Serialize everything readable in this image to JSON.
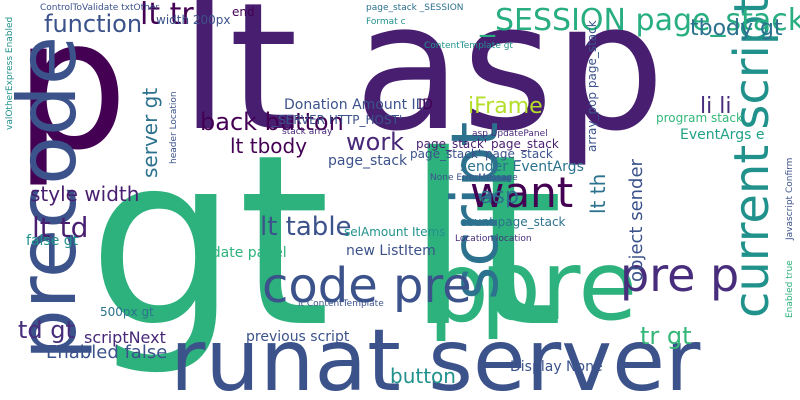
{
  "words": [
    {
      "text": "gt lt",
      "color": "#2db27d"
    },
    {
      "text": "lt asp",
      "color": "#481f70"
    },
    {
      "text": "p",
      "color": "#440154"
    },
    {
      "text": "runat server",
      "color": "#3b528b"
    },
    {
      "text": "precode",
      "color": "#3b528b"
    },
    {
      "text": "pre",
      "color": "#2db27d"
    },
    {
      "text": "p",
      "color": "#2db27d"
    },
    {
      "text": "script",
      "color": "#2c728e"
    },
    {
      "text": "current script",
      "color": "#21918c"
    },
    {
      "text": "code pre",
      "color": "#3b528b"
    },
    {
      "text": "pre p",
      "color": "#472d7b"
    },
    {
      "text": "want",
      "color": "#440154"
    },
    {
      "text": "_SESSION page_stack'",
      "color": "#28ae80"
    },
    {
      "text": "function",
      "color": "#3b528b"
    },
    {
      "text": "lt tr",
      "color": "#440154"
    },
    {
      "text": "back button",
      "color": "#440154"
    },
    {
      "text": "lt td",
      "color": "#481f70"
    },
    {
      "text": "style width",
      "color": "#481f70"
    },
    {
      "text": "lt table",
      "color": "#3b528b"
    },
    {
      "text": "td gt",
      "color": "#472d7b"
    },
    {
      "text": "Enabled false",
      "color": "#3b528b"
    },
    {
      "text": "tbody gt",
      "color": "#2c728e"
    },
    {
      "text": "lt tbody",
      "color": "#440154"
    },
    {
      "text": "work",
      "color": "#482878"
    },
    {
      "text": "server gt",
      "color": "#2c728e"
    },
    {
      "text": "iFrame",
      "color": "#b5de2b"
    },
    {
      "text": "Donation Amount ID",
      "color": "#3b528b"
    },
    {
      "text": "li li",
      "color": "#472d7b"
    },
    {
      "text": "button",
      "color": "#21918c"
    },
    {
      "text": "tr gt",
      "color": "#35b779"
    },
    {
      "text": "update panel",
      "color": "#2db27d"
    },
    {
      "text": "sender EventArgs",
      "color": "#2c728e"
    },
    {
      "text": "object sender",
      "color": "#3b528b"
    },
    {
      "text": "new ListItem",
      "color": "#3b528b"
    },
    {
      "text": "false gt",
      "color": "#21918c"
    },
    {
      "text": "scriptNext",
      "color": "#482878"
    },
    {
      "text": "asp",
      "color": "#2c728e"
    },
    {
      "text": "lt th",
      "color": "#2c728e"
    },
    {
      "text": "page_stack",
      "color": "#3b528b"
    },
    {
      "text": "EventArgs e",
      "color": "#1fa187"
    },
    {
      "text": "previous script",
      "color": "#3b528b"
    },
    {
      "text": "Display None",
      "color": "#3b528b"
    },
    {
      "text": "program stack",
      "color": "#35b779"
    },
    {
      "text": "page_stack' page_stack",
      "color": "#3b528b"
    },
    {
      "text": "array_pop page_stack",
      "color": "#3b528b"
    },
    {
      "text": "page_stack' page_stack",
      "color": "#481f70"
    },
    {
      "text": "count page_stack",
      "color": "#2c728e"
    },
    {
      "text": "selAmount Items",
      "color": "#21918c"
    },
    {
      "text": "500px gt",
      "color": "#2c728e"
    },
    {
      "text": "width 200px",
      "color": "#3b528b"
    },
    {
      "text": "end",
      "color": "#440154"
    },
    {
      "text": "ID",
      "color": "#440154"
    },
    {
      "text": "_SERVER HTTP_HOST'",
      "color": "#3b528b"
    },
    {
      "text": "ControlToValidate txtOther",
      "color": "#3b528b"
    },
    {
      "text": "valOtherExpress Enabled",
      "color": "#21918c"
    },
    {
      "text": "page_stack _SESSION",
      "color": "#2c728e"
    },
    {
      "text": "ContentTemplate gt",
      "color": "#21918c"
    },
    {
      "text": "stack array",
      "color": "#482878"
    },
    {
      "text": "header Location",
      "color": "#3b528b"
    },
    {
      "text": "Format c",
      "color": "#21918c"
    },
    {
      "text": "asp UpdatePanel",
      "color": "#482878"
    },
    {
      "text": "None ErrorMessage",
      "color": "#3b528b"
    },
    {
      "text": "Location location",
      "color": "#472d7b"
    },
    {
      "text": "lt ContentTemplate",
      "color": "#3b528b"
    },
    {
      "text": "Enabled true",
      "color": "#2db27d"
    },
    {
      "text": "Javascript Confirm",
      "color": "#3b528b"
    }
  ]
}
